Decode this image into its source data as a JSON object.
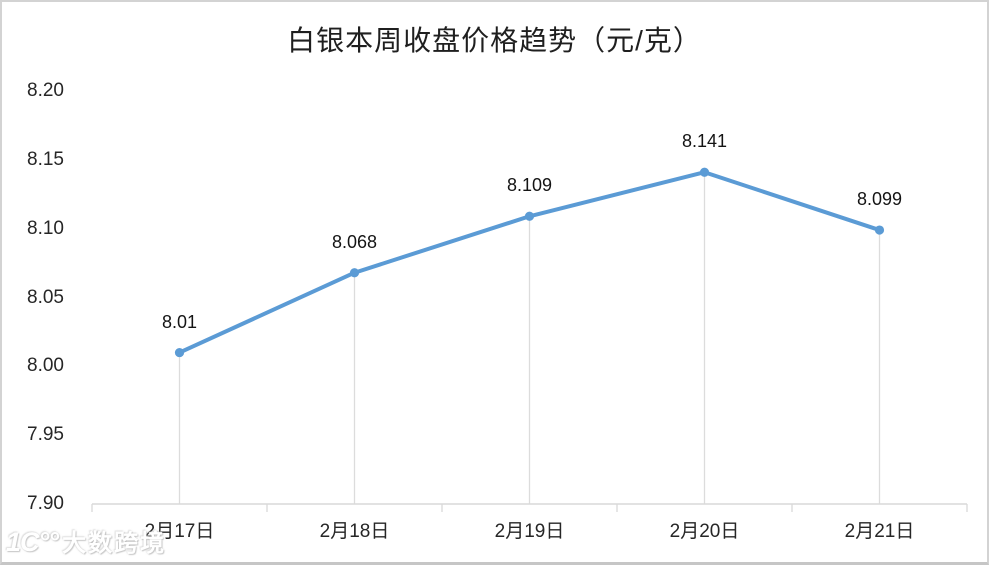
{
  "chart_data": {
    "type": "line",
    "title": "白银本周收盘价格趋势（元/克）",
    "categories": [
      "2月17日",
      "2月18日",
      "2月19日",
      "2月20日",
      "2月21日"
    ],
    "values": [
      8.01,
      8.068,
      8.109,
      8.141,
      8.099
    ],
    "value_labels": [
      "8.01",
      "8.068",
      "8.109",
      "8.141",
      "8.099"
    ],
    "xlabel": "",
    "ylabel": "",
    "ylim": [
      7.9,
      8.2
    ],
    "yticks": [
      "8.20",
      "8.15",
      "8.10",
      "8.05",
      "8.00",
      "7.95",
      "7.90"
    ],
    "legend": "none",
    "grid": "none",
    "droplines": true,
    "colors": {
      "line": "#5B9BD5",
      "marker": "#5B9BD5",
      "axis": "#D9D9D9",
      "dropline": "#DCDCDC",
      "text": "#262626"
    }
  },
  "watermark": {
    "logo": "1C°°",
    "brand": "大数跨境"
  }
}
